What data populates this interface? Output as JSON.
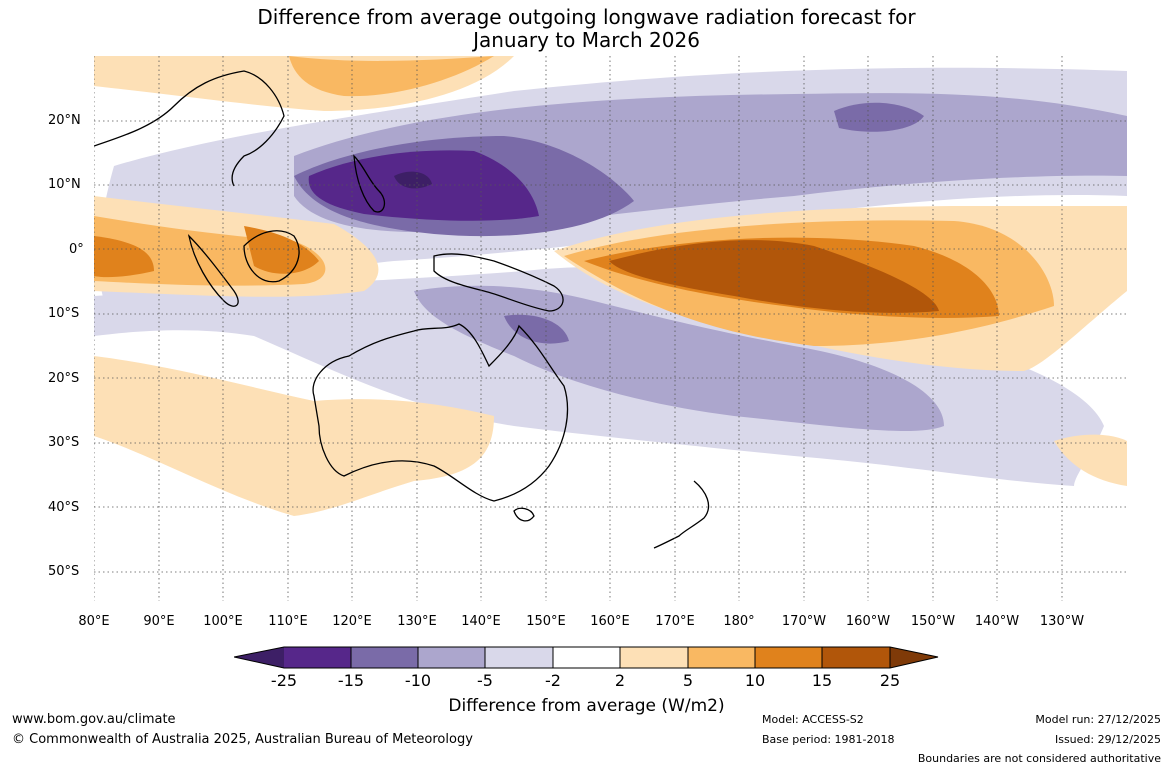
{
  "title": {
    "line1": "Difference from average outgoing longwave radiation forecast for",
    "line2": "January to March 2026"
  },
  "map": {
    "lat_labels": [
      "20°N",
      "10°N",
      "0°",
      "10°S",
      "20°S",
      "30°S",
      "40°S",
      "50°S"
    ],
    "lon_labels": [
      "80°E",
      "90°E",
      "100°E",
      "110°E",
      "120°E",
      "130°E",
      "140°E",
      "150°E",
      "160°E",
      "170°E",
      "180°",
      "170°W",
      "160°W",
      "150°W",
      "140°W",
      "130°W"
    ]
  },
  "colorbar": {
    "ticks": [
      "-25",
      "-15",
      "-10",
      "-5",
      "-2",
      "2",
      "5",
      "10",
      "15",
      "25"
    ],
    "colors": [
      "#3d1f66",
      "#56278a",
      "#7a6ba8",
      "#aca6cd",
      "#d9d8ea",
      "#ffffff",
      "#fde0b6",
      "#f9b862",
      "#e0821c",
      "#b1560a",
      "#7f3a08"
    ],
    "label": "Difference from average (W/m2)"
  },
  "footer": {
    "url": "www.bom.gov.au/climate",
    "copyright": "© Commonwealth of Australia 2025, Australian Bureau of Meteorology",
    "model": "Model: ACCESS-S2",
    "base_period": "Base period: 1981-2018",
    "model_run": "Model run: 27/12/2025",
    "issued": "Issued: 29/12/2025",
    "boundaries": "Boundaries are not considered authoritative"
  }
}
